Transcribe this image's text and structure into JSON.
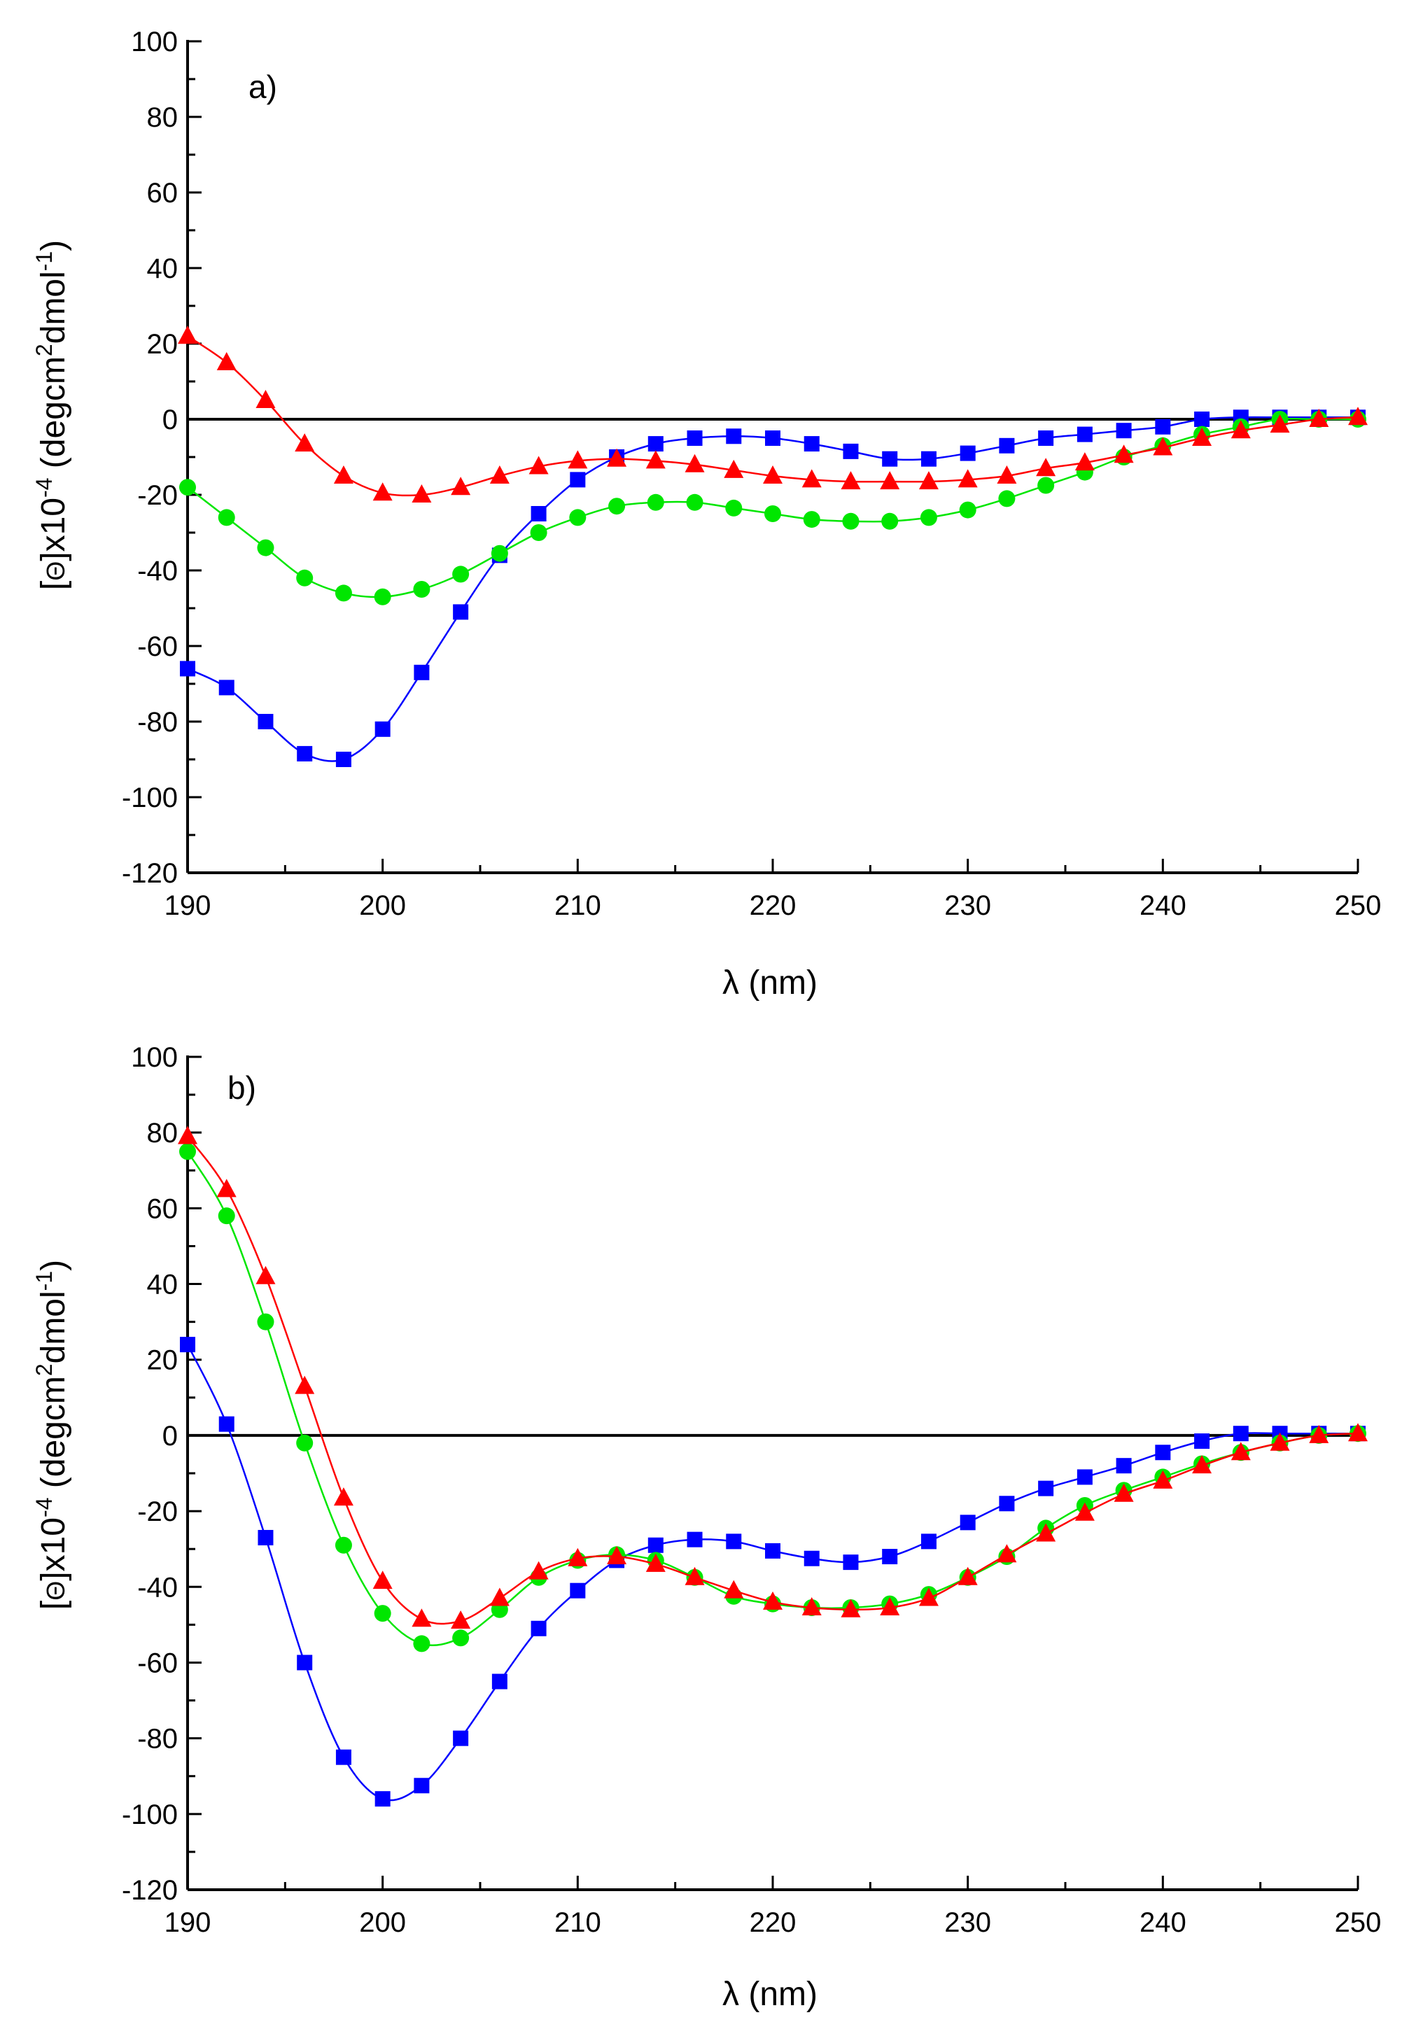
{
  "chart_data": [
    {
      "type": "line",
      "panel_label": "a)",
      "xlabel": "λ (nm)",
      "ylabel": "[Θ]x10-4 (degcm2dmol-1)",
      "ylabel_parts": {
        "pre": "[",
        "theta": "Θ",
        "mid": "]x10",
        "exp1": "-4",
        "unit1": " (degcm",
        "exp2": "2",
        "unit2": "dmol",
        "exp3": "-1",
        "close": ")"
      },
      "xlim": [
        190,
        250
      ],
      "ylim": [
        -120,
        100
      ],
      "xticks": [
        190,
        200,
        210,
        220,
        230,
        240,
        250
      ],
      "yticks": [
        -120,
        -100,
        -80,
        -60,
        -40,
        -20,
        0,
        20,
        40,
        60,
        80,
        100
      ],
      "zero_line": true,
      "grid": false,
      "x": [
        190,
        192,
        194,
        196,
        198,
        200,
        202,
        204,
        206,
        208,
        210,
        212,
        214,
        216,
        218,
        220,
        222,
        224,
        226,
        228,
        230,
        232,
        234,
        236,
        238,
        240,
        242,
        244,
        246,
        248,
        250
      ],
      "series": [
        {
          "name": "squares",
          "marker": "square",
          "color": "#0000ff",
          "values": [
            -66,
            -71,
            -80,
            -88.5,
            -90,
            -82,
            -67,
            -51,
            -36,
            -25,
            -16,
            -10,
            -6.5,
            -5,
            -4.5,
            -5,
            -6.5,
            -8.5,
            -10.5,
            -10.5,
            -9,
            -7,
            -5,
            -4,
            -3,
            -2,
            0,
            0.5,
            0.5,
            0.5,
            0.5
          ]
        },
        {
          "name": "circles",
          "marker": "circle",
          "color": "#00e600",
          "values": [
            -18,
            -26,
            -34,
            -42,
            -46,
            -47,
            -45,
            -41,
            -35.5,
            -30,
            -26,
            -23,
            -22,
            -22,
            -23.5,
            -25,
            -26.5,
            -27,
            -27,
            -26,
            -24,
            -21,
            -17.5,
            -14,
            -10,
            -7,
            -4,
            -2,
            0,
            0,
            0
          ]
        },
        {
          "name": "triangles",
          "marker": "triangle",
          "color": "#ff0000",
          "values": [
            22,
            15,
            5,
            -6.5,
            -15,
            -19.5,
            -20,
            -18,
            -15,
            -12.5,
            -11,
            -10.5,
            -11,
            -12,
            -13.5,
            -15,
            -16,
            -16.5,
            -16.5,
            -16.5,
            -16,
            -15,
            -13,
            -11.5,
            -9.5,
            -7.5,
            -5,
            -3,
            -1.5,
            0,
            0.5
          ]
        }
      ]
    },
    {
      "type": "line",
      "panel_label": "b)",
      "xlabel": "λ (nm)",
      "ylabel": "[Θ]x10-4 (degcm2dmol-1)",
      "ylabel_parts": {
        "pre": "[",
        "theta": "Θ",
        "mid": "]x10",
        "exp1": "-4",
        "unit1": " (degcm",
        "exp2": "2",
        "unit2": "dmol",
        "exp3": "-1",
        "close": ")"
      },
      "xlim": [
        190,
        250
      ],
      "ylim": [
        -120,
        100
      ],
      "xticks": [
        190,
        200,
        210,
        220,
        230,
        240,
        250
      ],
      "yticks": [
        -120,
        -100,
        -80,
        -60,
        -40,
        -20,
        0,
        20,
        40,
        60,
        80,
        100
      ],
      "zero_line": true,
      "grid": false,
      "x": [
        190,
        192,
        194,
        196,
        198,
        200,
        202,
        204,
        206,
        208,
        210,
        212,
        214,
        216,
        218,
        220,
        222,
        224,
        226,
        228,
        230,
        232,
        234,
        236,
        238,
        240,
        242,
        244,
        246,
        248,
        250
      ],
      "series": [
        {
          "name": "squares",
          "marker": "square",
          "color": "#0000ff",
          "values": [
            24,
            3,
            -27,
            -60,
            -85,
            -96,
            -92.5,
            -80,
            -65,
            -51,
            -41,
            -33,
            -29,
            -27.5,
            -28,
            -30.5,
            -32.5,
            -33.5,
            -32,
            -28,
            -23,
            -18,
            -14,
            -11,
            -8,
            -4.5,
            -1.5,
            0.5,
            0.5,
            0.5,
            0.5
          ]
        },
        {
          "name": "circles",
          "marker": "circle",
          "color": "#00e600",
          "values": [
            75,
            58,
            30,
            -2,
            -29,
            -47,
            -55,
            -53.5,
            -46,
            -37.5,
            -33,
            -31.5,
            -33,
            -37.5,
            -42.5,
            -44.5,
            -45.5,
            -45.5,
            -44.5,
            -42,
            -37.5,
            -32,
            -24.5,
            -18.5,
            -14.5,
            -11,
            -7.5,
            -4.5,
            -2,
            0,
            0.5
          ]
        },
        {
          "name": "triangles",
          "marker": "triangle",
          "color": "#ff0000",
          "values": [
            79,
            65,
            42,
            13,
            -16.5,
            -38.5,
            -48.5,
            -49,
            -43,
            -36,
            -32.5,
            -32,
            -34,
            -37.5,
            -41,
            -44,
            -45.5,
            -46,
            -45.5,
            -43,
            -37.5,
            -31.5,
            -26,
            -20.5,
            -15.5,
            -12,
            -8,
            -4.5,
            -2,
            0,
            0.5
          ]
        }
      ]
    }
  ]
}
